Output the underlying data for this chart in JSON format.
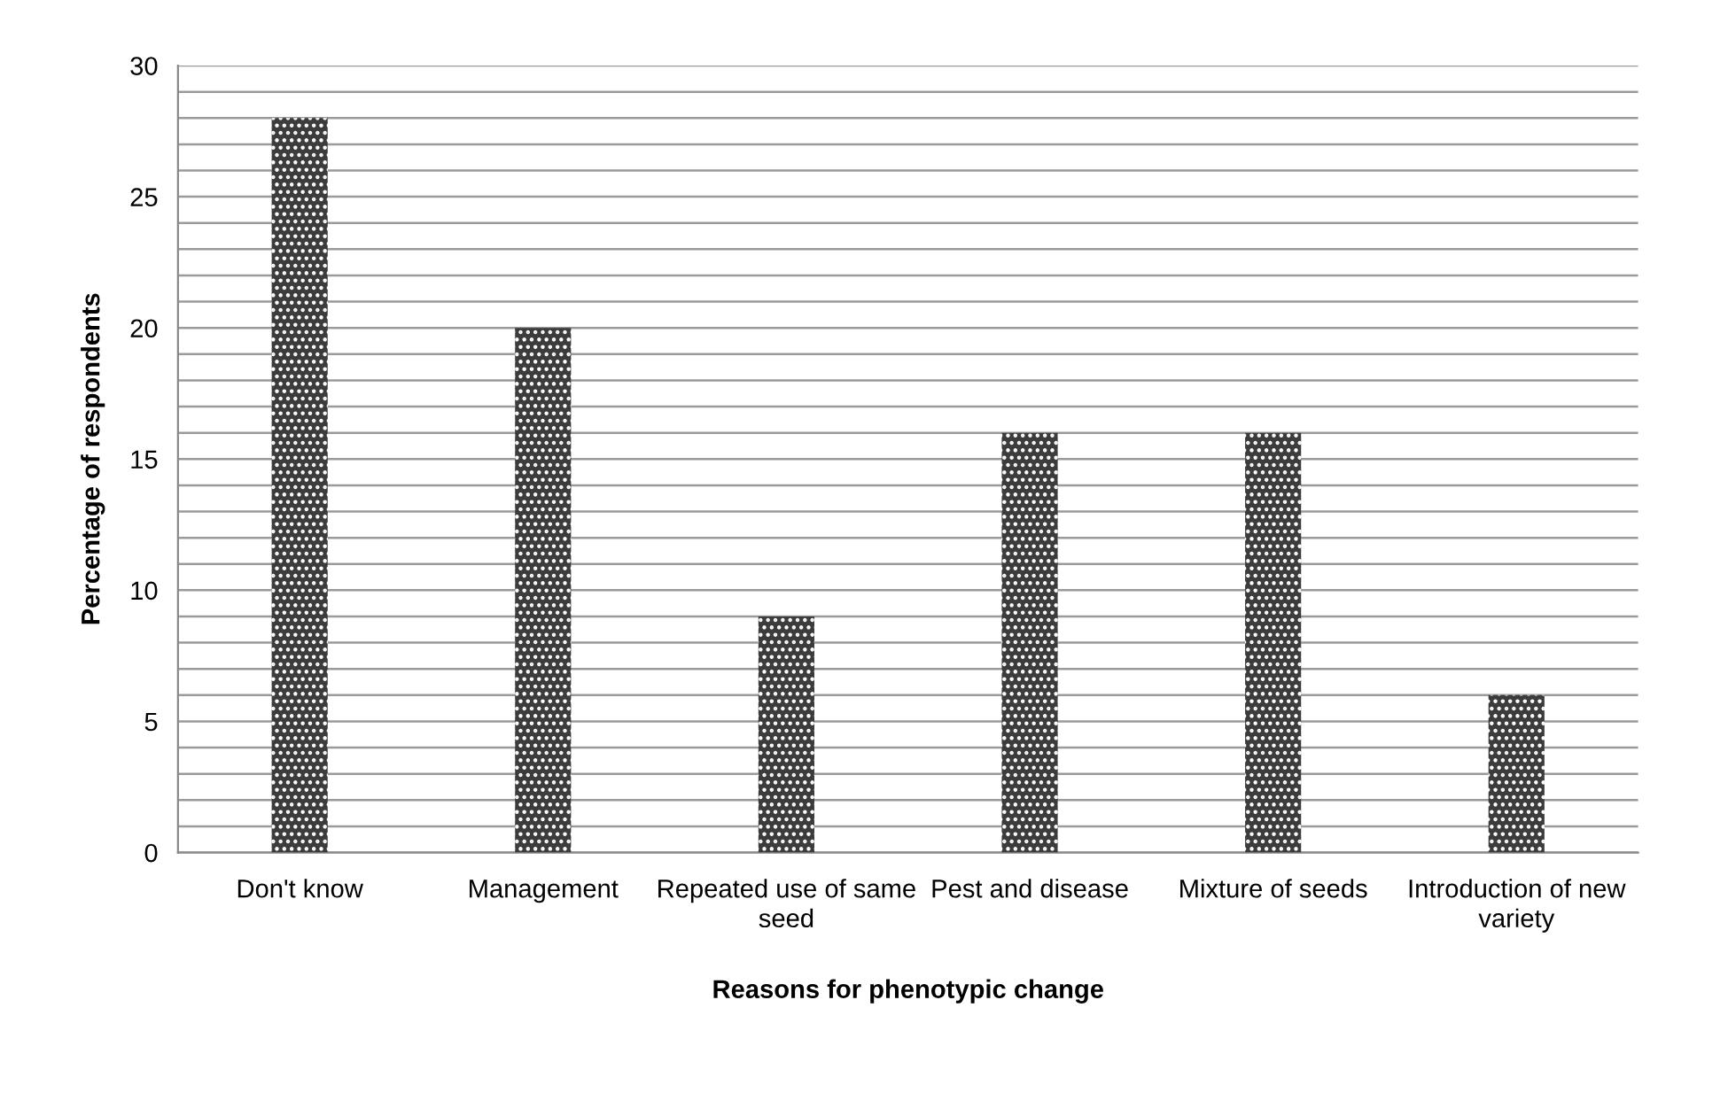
{
  "chart_data": {
    "type": "bar",
    "xlabel": "Reasons for phenotypic change",
    "ylabel": "Percentage of respondents",
    "categories": [
      "Don't know",
      "Management",
      "Repeated use of same seed",
      "Pest and disease",
      "Mixture of seeds",
      "Introduction of new variety"
    ],
    "values": [
      28,
      20,
      9,
      16,
      16,
      6
    ],
    "color": "#3c3c3c",
    "ylim": [
      0,
      30
    ],
    "yticks": [
      0,
      {
        "value": 1,
        "label": null
      },
      {
        "value": 2,
        "label": null
      },
      {
        "value": 3,
        "label": null
      },
      {
        "value": 4,
        "label": null
      },
      5,
      {
        "value": 6,
        "label": null
      },
      {
        "value": 7,
        "label": null
      },
      {
        "value": 8,
        "label": null
      },
      {
        "value": 9,
        "label": null
      },
      10,
      {
        "value": 11,
        "label": null
      },
      {
        "value": 12,
        "label": null
      },
      {
        "value": 13,
        "label": null
      },
      {
        "value": 14,
        "label": null
      },
      15,
      {
        "value": 16,
        "label": null
      },
      {
        "value": 17,
        "label": null
      },
      {
        "value": 18,
        "label": null
      },
      {
        "value": 19,
        "label": null
      },
      20,
      {
        "value": 21,
        "label": null
      },
      {
        "value": 22,
        "label": null
      },
      {
        "value": 23,
        "label": null
      },
      {
        "value": 24,
        "label": null
      },
      25,
      {
        "value": 26,
        "label": null
      },
      {
        "value": 27,
        "label": null
      },
      {
        "value": 28,
        "label": null
      },
      {
        "value": 29,
        "label": null
      },
      30
    ],
    "grid": "y"
  }
}
